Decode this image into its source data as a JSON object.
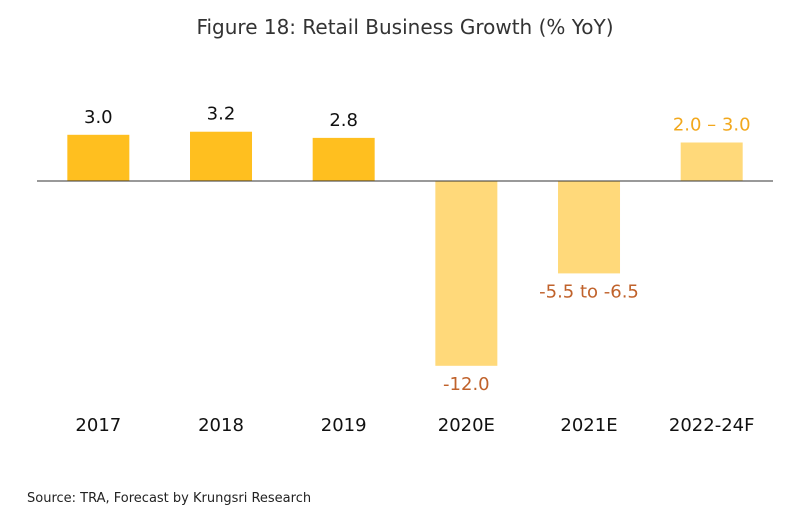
{
  "chart_data": {
    "type": "bar",
    "title": "Figure 18: Retail Business Growth (% YoY)",
    "categories": [
      "2017",
      "2018",
      "2019",
      "2020E",
      "2021E",
      "2022-24F"
    ],
    "values": [
      3.0,
      3.2,
      2.8,
      -12.0,
      -6.0,
      2.5
    ],
    "value_labels": [
      "3.0",
      "3.2",
      "2.8",
      "-12.0",
      "-5.5 to -6.5",
      "2.0 – 3.0"
    ],
    "forecast": [
      false,
      false,
      false,
      true,
      true,
      true
    ],
    "ylim": [
      -12.0,
      3.2
    ],
    "grid": false,
    "xlabel": "",
    "ylabel": "",
    "colors": {
      "actual_bar": "#FFBF1F",
      "forecast_bar": "#FFD97A",
      "negative_label": "#C0622B",
      "forecast_positive_label": "#F2A81D",
      "actual_label": "#111111",
      "axis": "#333333"
    }
  },
  "source": "Source: TRA, Forecast by Krungsri Research"
}
